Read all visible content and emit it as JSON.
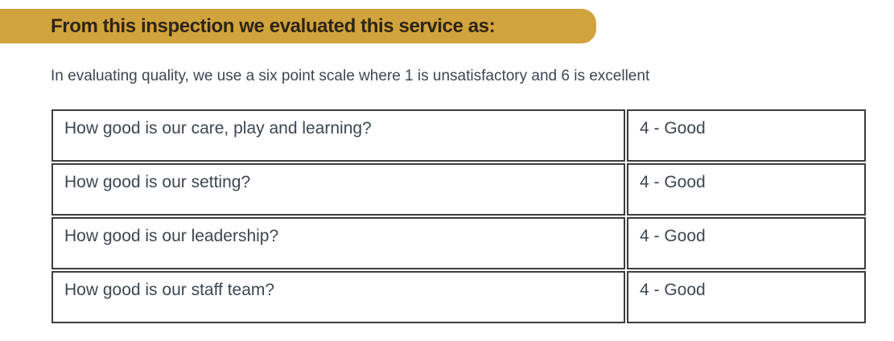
{
  "banner": {
    "title": "From this inspection we evaluated this service as:"
  },
  "intro": {
    "text": "In evaluating quality, we use a six point scale where 1 is unsatisfactory and 6 is excellent"
  },
  "evaluation_table": {
    "rows": [
      {
        "question": "How good is our care, play and learning?",
        "rating": "4 - Good"
      },
      {
        "question": "How good is our setting?",
        "rating": "4 - Good"
      },
      {
        "question": "How good is our leadership?",
        "rating": "4 - Good"
      },
      {
        "question": "How good is our staff team?",
        "rating": "4 - Good"
      }
    ]
  },
  "colors": {
    "banner_background": "#d1a33c",
    "banner_text": "#2d2413",
    "body_text": "#3c4651",
    "table_border": "#3d3d3d"
  }
}
